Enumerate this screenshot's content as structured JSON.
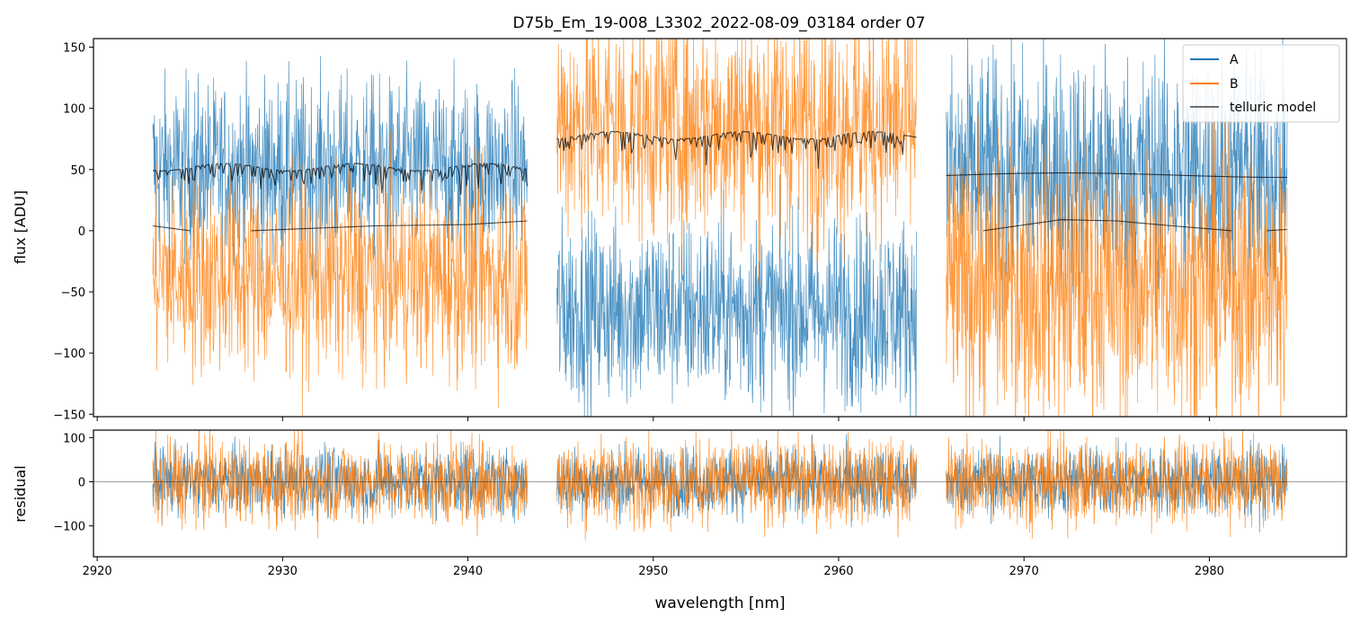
{
  "chart_data": {
    "type": "line",
    "title": "D75b_Em_19-008_L3302_2022-08-09_03184  order 07",
    "xlabel": "wavelength [nm]",
    "xlim": [
      2919.8,
      2987.4
    ],
    "x_ticks": [
      2920,
      2930,
      2940,
      2950,
      2960,
      2970,
      2980
    ],
    "x_tick_labels": [
      "2920",
      "2930",
      "2940",
      "2950",
      "2960",
      "2970",
      "2980"
    ],
    "panels": [
      {
        "id": "flux",
        "ylabel": "flux [ADU]",
        "ylim": [
          -152,
          157
        ],
        "y_ticks": [
          -150,
          -100,
          -50,
          0,
          50,
          100,
          150
        ],
        "y_tick_labels": [
          "−150",
          "−100",
          "−50",
          "0",
          "50",
          "100",
          "150"
        ]
      },
      {
        "id": "residual",
        "ylabel": "residual",
        "ylim": [
          -170,
          117
        ],
        "y_ticks": [
          -100,
          0,
          100
        ],
        "y_tick_labels": [
          "−100",
          "0",
          "100"
        ],
        "zero_line": true
      }
    ],
    "segments": [
      [
        2923.0,
        2943.2
      ],
      [
        2944.8,
        2964.2
      ],
      [
        2965.8,
        2984.2
      ]
    ],
    "series": [
      {
        "name": "A",
        "color": "#1f77b4",
        "flux": {
          "segment_means": [
            50,
            -65,
            47
          ],
          "scatter": [
            36,
            38,
            48
          ]
        },
        "residual": {
          "scatter": 38
        }
      },
      {
        "name": "B",
        "color": "#ff7f0e",
        "flux": {
          "segment_means": [
            -38,
            88,
            -45
          ],
          "scatter": [
            40,
            48,
            55
          ]
        },
        "residual": {
          "scatter": 48
        }
      },
      {
        "name": "telluric model",
        "color": "#000000",
        "upper_baselines": [
          52,
          78,
          45
        ],
        "lower_points": [
          [
            2923.0,
            4
          ],
          [
            2925.0,
            0
          ],
          [
            2928.3,
            0
          ],
          [
            2935,
            4
          ],
          [
            2940,
            5
          ],
          [
            2943.2,
            8
          ],
          [
            2967.8,
            0
          ],
          [
            2972,
            9
          ],
          [
            2975,
            8
          ],
          [
            2978,
            4
          ],
          [
            2981.2,
            0
          ],
          [
            2983.1,
            0
          ],
          [
            2984.2,
            1
          ]
        ]
      }
    ],
    "legend": {
      "position": "top-right",
      "entries": [
        "A",
        "B",
        "telluric model"
      ]
    }
  }
}
